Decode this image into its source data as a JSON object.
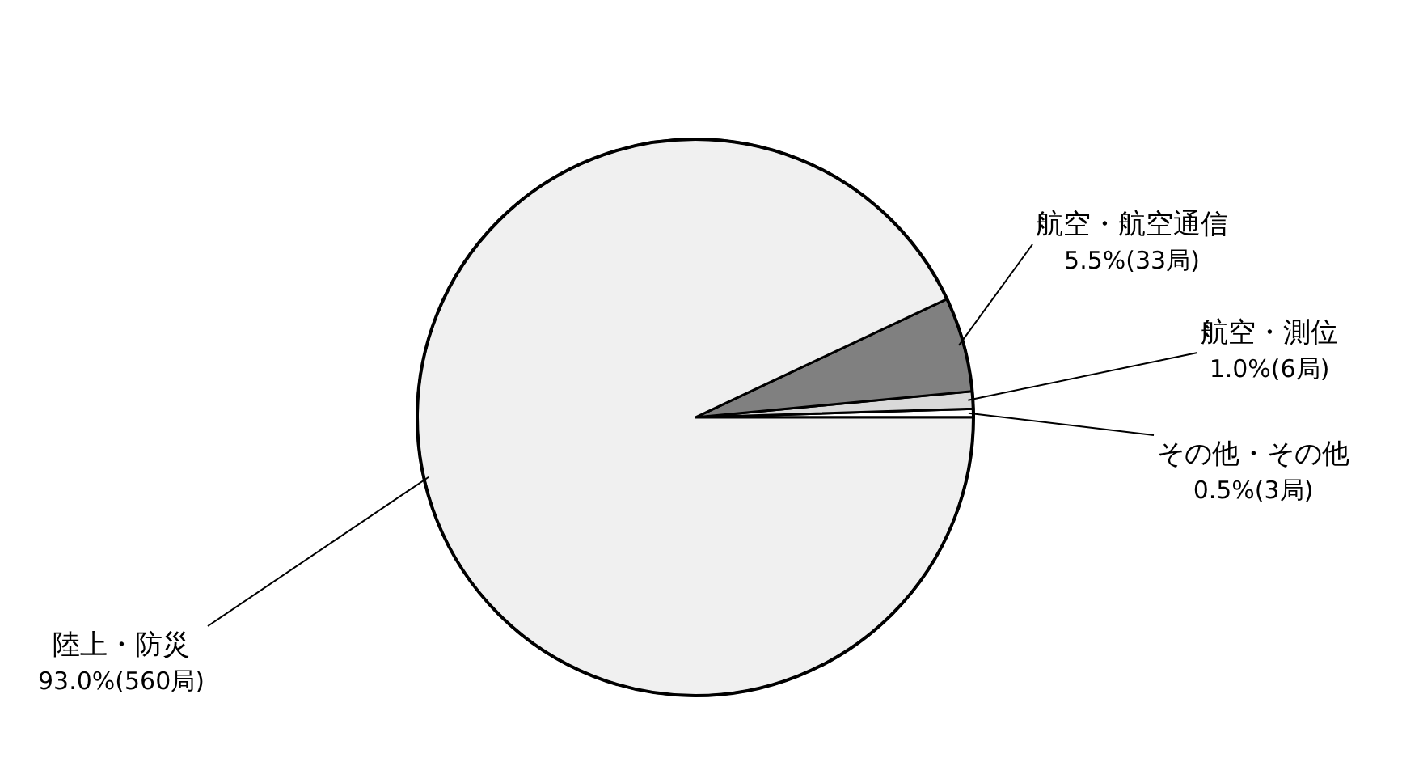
{
  "chart_data": {
    "type": "pie",
    "categories": [
      "その他・その他",
      "航空・測位",
      "航空・航空通信",
      "陸上・防災"
    ],
    "values": [
      0.5,
      1.0,
      5.5,
      93.0
    ],
    "value_labels": [
      "0.5%(3局)",
      "1.0%(6局)",
      "5.5%(33局)",
      "93.0%(560局)"
    ],
    "colors": [
      "#ffffff",
      "#d9d9d9",
      "#808080",
      "#f0f0f0"
    ],
    "legend": false
  }
}
